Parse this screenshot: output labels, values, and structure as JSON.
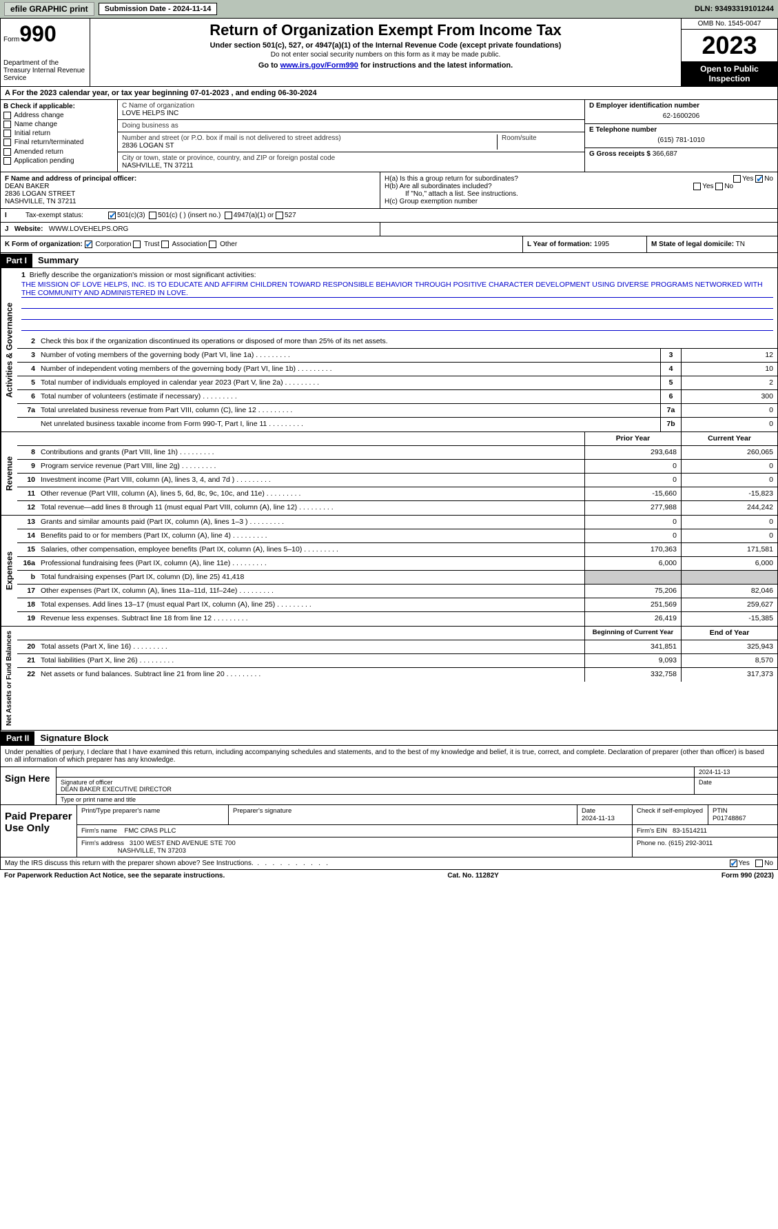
{
  "top_bar": {
    "efile": "efile GRAPHIC print",
    "sub_date_label": "Submission Date - 2024-11-14",
    "dln": "DLN: 93493319101244"
  },
  "header": {
    "form_word": "Form",
    "form_num": "990",
    "dept": "Department of the Treasury Internal Revenue Service",
    "title": "Return of Organization Exempt From Income Tax",
    "sub1": "Under section 501(c), 527, or 4947(a)(1) of the Internal Revenue Code (except private foundations)",
    "sub2": "Do not enter social security numbers on this form as it may be made public.",
    "sub3_pre": "Go to ",
    "sub3_link": "www.irs.gov/Form990",
    "sub3_post": " for instructions and the latest information.",
    "omb": "OMB No. 1545-0047",
    "year": "2023",
    "open": "Open to Public Inspection"
  },
  "row_a": "A   For the 2023 calendar year, or tax year beginning 07-01-2023   , and ending 06-30-2024",
  "box_b": {
    "hdr": "B Check if applicable:",
    "items": [
      "Address change",
      "Name change",
      "Initial return",
      "Final return/terminated",
      "Amended return",
      "Application pending"
    ]
  },
  "box_c": {
    "name_lbl": "C Name of organization",
    "name": "LOVE HELPS INC",
    "dba_lbl": "Doing business as",
    "dba": "",
    "street_lbl": "Number and street (or P.O. box if mail is not delivered to street address)",
    "room_lbl": "Room/suite",
    "street": "2836 LOGAN ST",
    "city_lbl": "City or town, state or province, country, and ZIP or foreign postal code",
    "city": "NASHVILLE, TN  37211"
  },
  "box_d": {
    "ein_lbl": "D Employer identification number",
    "ein": "62-1600206",
    "phone_lbl": "E Telephone number",
    "phone": "(615) 781-1010",
    "gross_lbl": "G Gross receipts $",
    "gross": "366,687"
  },
  "box_f": {
    "lbl": "F  Name and address of principal officer:",
    "name": "DEAN BAKER",
    "street": "2836 LOGAN STREET",
    "city": "NASHVILLE, TN  37211"
  },
  "box_h": {
    "ha_lbl": "H(a)  Is this a group return for subordinates?",
    "hb_lbl": "H(b)  Are all subordinates included?",
    "hb_note": "If \"No,\" attach a list. See instructions.",
    "hc_lbl": "H(c)  Group exemption number"
  },
  "row_i": {
    "lbl": "Tax-exempt status:",
    "o1": "501(c)(3)",
    "o2": "501(c) (  ) (insert no.)",
    "o3": "4947(a)(1) or",
    "o4": "527"
  },
  "row_j": {
    "lbl": "Website:",
    "val": "WWW.LOVEHELPS.ORG"
  },
  "row_k": {
    "form_lbl": "K Form of organization:",
    "o1": "Corporation",
    "o2": "Trust",
    "o3": "Association",
    "o4": "Other",
    "l_lbl": "L Year of formation:",
    "l_val": "1995",
    "m_lbl": "M State of legal domicile:",
    "m_val": "TN"
  },
  "part1": {
    "hdr": "Part I",
    "title": "Summary"
  },
  "mission": {
    "q": "Briefly describe the organization's mission or most significant activities:",
    "text": "THE MISSION OF LOVE HELPS, INC. IS TO EDUCATE AND AFFIRM CHILDREN TOWARD RESPONSIBLE BEHAVIOR THROUGH POSITIVE CHARACTER DEVELOPMENT USING DIVERSE PROGRAMS NETWORKED WITH THE COMMUNITY AND ADMINISTERED IN LOVE."
  },
  "gov_lines": {
    "l2": "Check this box      if the organization discontinued its operations or disposed of more than 25% of its net assets.",
    "l3": {
      "d": "Number of voting members of the governing body (Part VI, line 1a)",
      "n": "3",
      "v": "12"
    },
    "l4": {
      "d": "Number of independent voting members of the governing body (Part VI, line 1b)",
      "n": "4",
      "v": "10"
    },
    "l5": {
      "d": "Total number of individuals employed in calendar year 2023 (Part V, line 2a)",
      "n": "5",
      "v": "2"
    },
    "l6": {
      "d": "Total number of volunteers (estimate if necessary)",
      "n": "6",
      "v": "300"
    },
    "l7a": {
      "d": "Total unrelated business revenue from Part VIII, column (C), line 12",
      "n": "7a",
      "v": "0"
    },
    "l7b": {
      "d": "Net unrelated business taxable income from Form 990-T, Part I, line 11",
      "n": "7b",
      "v": "0"
    }
  },
  "rev_hdr": {
    "py": "Prior Year",
    "cy": "Current Year"
  },
  "rev_lines": [
    {
      "n": "8",
      "d": "Contributions and grants (Part VIII, line 1h)",
      "py": "293,648",
      "cy": "260,065"
    },
    {
      "n": "9",
      "d": "Program service revenue (Part VIII, line 2g)",
      "py": "0",
      "cy": "0"
    },
    {
      "n": "10",
      "d": "Investment income (Part VIII, column (A), lines 3, 4, and 7d )",
      "py": "0",
      "cy": "0"
    },
    {
      "n": "11",
      "d": "Other revenue (Part VIII, column (A), lines 5, 6d, 8c, 9c, 10c, and 11e)",
      "py": "-15,660",
      "cy": "-15,823"
    },
    {
      "n": "12",
      "d": "Total revenue—add lines 8 through 11 (must equal Part VIII, column (A), line 12)",
      "py": "277,988",
      "cy": "244,242"
    }
  ],
  "exp_lines": [
    {
      "n": "13",
      "d": "Grants and similar amounts paid (Part IX, column (A), lines 1–3 )",
      "py": "0",
      "cy": "0"
    },
    {
      "n": "14",
      "d": "Benefits paid to or for members (Part IX, column (A), line 4)",
      "py": "0",
      "cy": "0"
    },
    {
      "n": "15",
      "d": "Salaries, other compensation, employee benefits (Part IX, column (A), lines 5–10)",
      "py": "170,363",
      "cy": "171,581"
    },
    {
      "n": "16a",
      "d": "Professional fundraising fees (Part IX, column (A), line 11e)",
      "py": "6,000",
      "cy": "6,000"
    },
    {
      "n": "b",
      "d": "Total fundraising expenses (Part IX, column (D), line 25) 41,418",
      "py": "",
      "cy": "",
      "grey": true
    },
    {
      "n": "17",
      "d": "Other expenses (Part IX, column (A), lines 11a–11d, 11f–24e)",
      "py": "75,206",
      "cy": "82,046"
    },
    {
      "n": "18",
      "d": "Total expenses. Add lines 13–17 (must equal Part IX, column (A), line 25)",
      "py": "251,569",
      "cy": "259,627"
    },
    {
      "n": "19",
      "d": "Revenue less expenses. Subtract line 18 from line 12",
      "py": "26,419",
      "cy": "-15,385"
    }
  ],
  "net_hdr": {
    "py": "Beginning of Current Year",
    "cy": "End of Year"
  },
  "net_lines": [
    {
      "n": "20",
      "d": "Total assets (Part X, line 16)",
      "py": "341,851",
      "cy": "325,943"
    },
    {
      "n": "21",
      "d": "Total liabilities (Part X, line 26)",
      "py": "9,093",
      "cy": "8,570"
    },
    {
      "n": "22",
      "d": "Net assets or fund balances. Subtract line 21 from line 20",
      "py": "332,758",
      "cy": "317,373"
    }
  ],
  "vert": {
    "gov": "Activities & Governance",
    "rev": "Revenue",
    "exp": "Expenses",
    "net": "Net Assets or Fund Balances"
  },
  "part2": {
    "hdr": "Part II",
    "title": "Signature Block"
  },
  "sig_intro": "Under penalties of perjury, I declare that I have examined this return, including accompanying schedules and statements, and to the best of my knowledge and belief, it is true, correct, and complete. Declaration of preparer (other than officer) is based on all information of which preparer has any knowledge.",
  "sign_here": {
    "lbl": "Sign Here",
    "date": "2024-11-13",
    "sig_lbl": "Signature of officer",
    "date_lbl": "Date",
    "name": "DEAN BAKER  EXECUTIVE DIRECTOR",
    "name_lbl": "Type or print name and title"
  },
  "paid": {
    "lbl": "Paid Preparer Use Only",
    "r1": {
      "c1": "Print/Type preparer's name",
      "c2": "Preparer's signature",
      "c3_lbl": "Date",
      "c3": "2024-11-13",
      "c4": "Check       if self-employed",
      "c5_lbl": "PTIN",
      "c5": "P01748867"
    },
    "r2": {
      "c1_lbl": "Firm's name",
      "c1": "FMC CPAS PLLC",
      "c2_lbl": "Firm's EIN",
      "c2": "83-1514211"
    },
    "r3": {
      "c1_lbl": "Firm's address",
      "c1a": "3100 WEST END AVENUE STE 700",
      "c1b": "NASHVILLE, TN  37203",
      "c2_lbl": "Phone no.",
      "c2": "(615) 292-3011"
    }
  },
  "discuss": "May the IRS discuss this return with the preparer shown above? See Instructions.",
  "footer": {
    "l": "For Paperwork Reduction Act Notice, see the separate instructions.",
    "c": "Cat. No. 11282Y",
    "r": "Form 990 (2023)"
  }
}
